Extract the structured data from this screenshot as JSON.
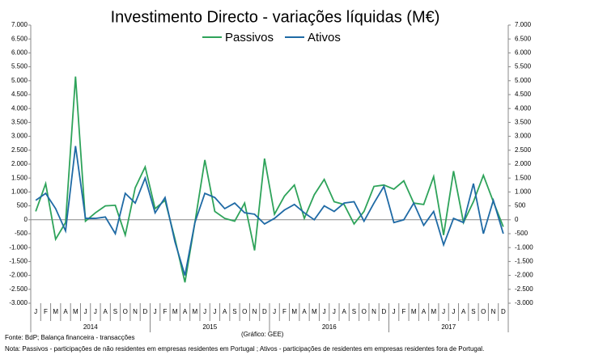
{
  "chart_data": {
    "type": "line",
    "title": "Investimento  Directo - variações líquidas (M€)",
    "categories": [
      "J",
      "F",
      "M",
      "A",
      "M",
      "J",
      "J",
      "A",
      "S",
      "O",
      "N",
      "D",
      "J",
      "F",
      "M",
      "A",
      "M",
      "J",
      "J",
      "A",
      "S",
      "O",
      "N",
      "D",
      "J",
      "F",
      "M",
      "A",
      "M",
      "J",
      "J",
      "A",
      "S",
      "O",
      "N",
      "D",
      "J",
      "F",
      "M",
      "A",
      "M",
      "J",
      "J",
      "A",
      "S",
      "O",
      "N",
      "D"
    ],
    "year_labels": [
      "2014",
      "2015",
      "2016",
      "2017"
    ],
    "series": [
      {
        "name": "Passivos",
        "color": "#2ea35a",
        "values": [
          300,
          1300,
          -700,
          -100,
          5150,
          -50,
          250,
          500,
          520,
          -550,
          1150,
          1900,
          400,
          700,
          -700,
          -2250,
          -100,
          2150,
          300,
          50,
          -50,
          600,
          -1100,
          2200,
          200,
          850,
          1250,
          50,
          900,
          1450,
          650,
          550,
          -150,
          300,
          1200,
          1250,
          1100,
          1400,
          600,
          550,
          1550,
          -550,
          1750,
          -100,
          650,
          1600,
          650,
          -250
        ]
      },
      {
        "name": "Ativos",
        "color": "#1f6aa5",
        "axis": "y2",
        "values": [
          700,
          950,
          400,
          -400,
          2650,
          50,
          50,
          100,
          -500,
          950,
          600,
          1500,
          250,
          800,
          -800,
          -2000,
          -100,
          950,
          800,
          400,
          600,
          250,
          200,
          -150,
          50,
          350,
          550,
          250,
          0,
          500,
          300,
          600,
          650,
          -50,
          600,
          1200,
          -100,
          0,
          600,
          -200,
          300,
          -900,
          50,
          -100,
          1300,
          -500,
          700,
          -500
        ]
      }
    ],
    "ylim": [
      -3000,
      7000
    ],
    "yticks": [
      {
        "value": -3000,
        "label": "-3.000"
      },
      {
        "value": -2500,
        "label": "-2.500"
      },
      {
        "value": -2000,
        "label": "-2.000"
      },
      {
        "value": -1500,
        "label": "-1.500"
      },
      {
        "value": -1000,
        "label": "-1.000"
      },
      -500,
      0,
      500,
      {
        "value": 1000,
        "label": "1.000"
      },
      {
        "value": 1500,
        "label": "1.500"
      },
      {
        "value": 2000,
        "label": "2.000"
      },
      {
        "value": 2500,
        "label": "2.500"
      },
      {
        "value": 3000,
        "label": "3.000"
      },
      {
        "value": 3500,
        "label": "3.500"
      },
      {
        "value": 4000,
        "label": "4.000"
      },
      {
        "value": 4500,
        "label": "4.500"
      },
      {
        "value": 5000,
        "label": "5.000"
      },
      {
        "value": 5500,
        "label": "5.500"
      },
      {
        "value": 6000,
        "label": "6.000"
      },
      {
        "value": 6500,
        "label": "6.500"
      },
      {
        "value": 7000,
        "label": "7.000"
      }
    ],
    "y2lim": [
      -3000,
      7000
    ],
    "y2ticks": [
      {
        "value": -3000,
        "label": "-3.000"
      },
      {
        "value": -2500,
        "label": "-2.500"
      },
      {
        "value": -2000,
        "label": "-2.000"
      },
      {
        "value": -1500,
        "label": "-1.500"
      },
      {
        "value": -1000,
        "label": "-1.000"
      },
      -500,
      0,
      500,
      {
        "value": 1000,
        "label": "1.000"
      },
      {
        "value": 1500,
        "label": "1.500"
      },
      {
        "value": 2000,
        "label": "2.000"
      },
      {
        "value": 2500,
        "label": "2.500"
      },
      {
        "value": 3000,
        "label": "3.000"
      },
      {
        "value": 3500,
        "label": "3.500"
      },
      {
        "value": 4000,
        "label": "4.000"
      },
      {
        "value": 4500,
        "label": "4.500"
      },
      {
        "value": 5000,
        "label": "5.000"
      },
      {
        "value": 5500,
        "label": "5.500"
      },
      {
        "value": 6000,
        "label": "6.000"
      },
      {
        "value": 6500,
        "label": "6.500"
      },
      {
        "value": 7000,
        "label": "7.000"
      }
    ],
    "source": "Fonte: BdP; Balança financeira - transacções",
    "credit": "(Gráfico: GEE)",
    "note": "Nota: Passivos - participações de não residentes em empresas residentes em Portugal ; Ativos - participações de residentes em empresas residentes fora de Portugal."
  }
}
